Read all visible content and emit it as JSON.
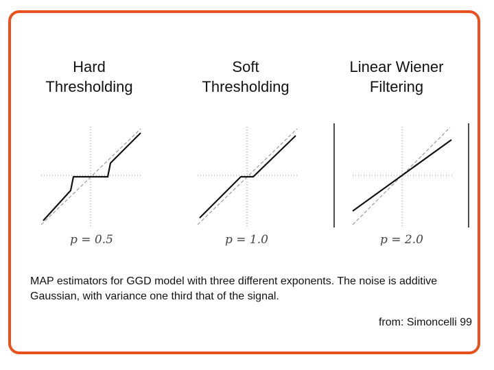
{
  "panels": [
    {
      "title": "Hard\nThresholding",
      "label": "p = 0.5"
    },
    {
      "title": "Soft\nThresholding",
      "label": "p = 1.0"
    },
    {
      "title": "Linear Wiener\nFiltering",
      "label": "p = 2.0"
    }
  ],
  "caption": "MAP estimators for GGD model with three different exponents. The noise is additive Gaussian, with variance one third that of the signal.",
  "source": "from: Simoncelli 99",
  "colors": {
    "frame": "#e8501e"
  }
}
